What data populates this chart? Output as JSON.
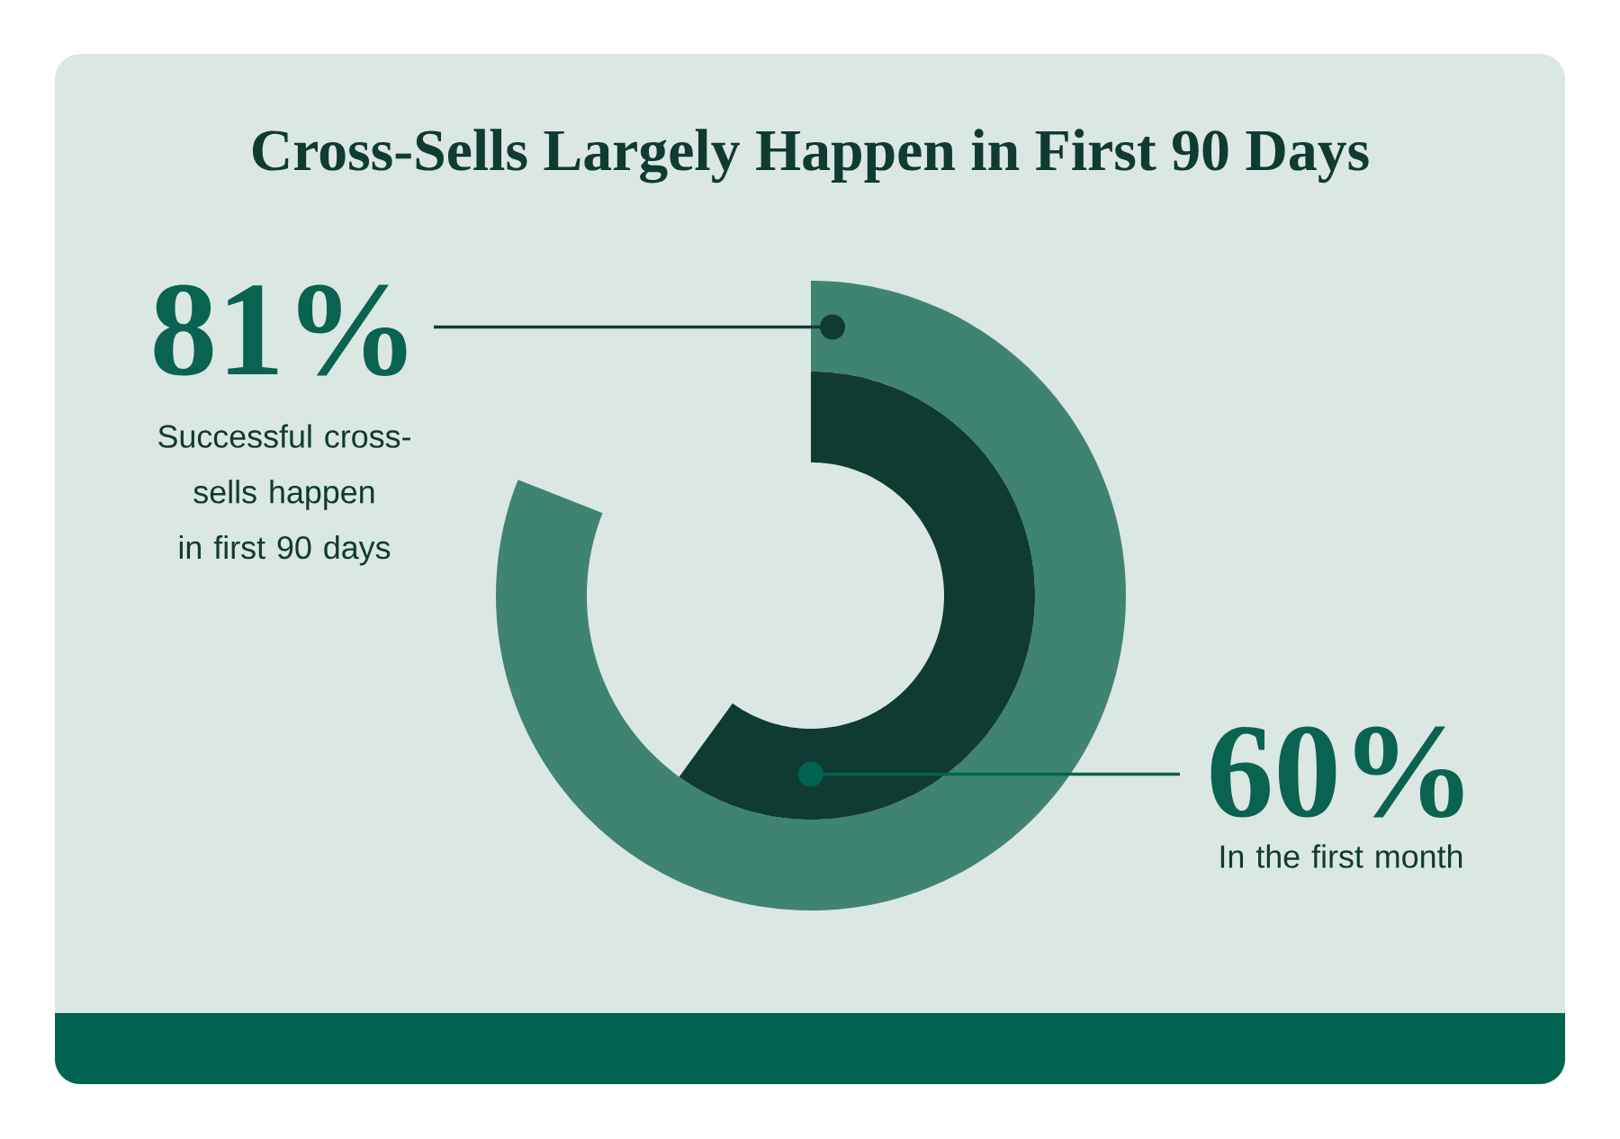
{
  "chart_data": {
    "type": "other",
    "title": "Cross-Sells Largely Happen in First 90 Days",
    "categories": [
      "Successful cross-sells happen in first 90 days",
      "In the first month"
    ],
    "values": [
      81,
      60
    ],
    "value_labels": [
      "81%",
      "60%"
    ],
    "colors": [
      "#3f8373",
      "#0f3b32"
    ]
  }
}
